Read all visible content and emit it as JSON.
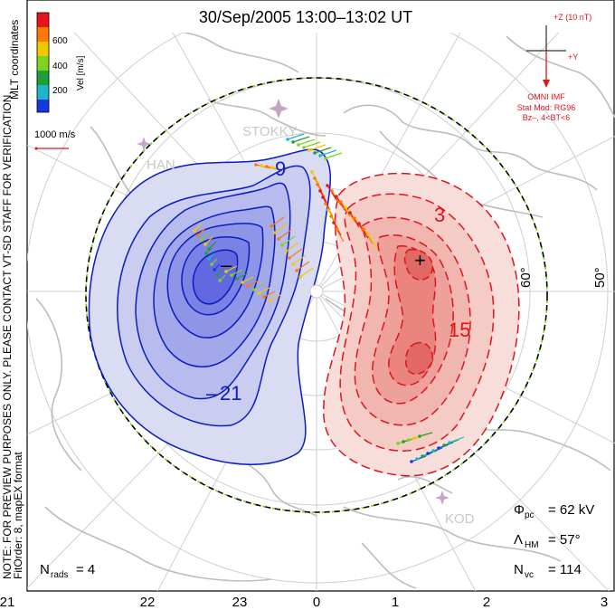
{
  "title": "30/Sep/2005 13:00–13:02 UT",
  "coordinates_label": "MLT coordinates",
  "colorbar": {
    "label": "Vel [m/s]",
    "ticks": [
      "600",
      "400",
      "200"
    ],
    "colors": [
      "#e8141c",
      "#ff7a00",
      "#f2c900",
      "#7ed321",
      "#1f9e3a",
      "#1fb5c9",
      "#1638e0"
    ]
  },
  "reference_vector": "1000 m/s",
  "imf": {
    "z_label": "+Z (10 nT)",
    "y_label": "+Y",
    "source": "OMNI IMF",
    "model": "Stat Mod: RG96",
    "condition": "Bz–, 4<BT<6"
  },
  "notes": {
    "line1": "NOTE: FOR PREVIEW PURPOSES ONLY. PLEASE CONTACT VT-SD STAFF FOR VERIFICATION.",
    "line2": "FitOrder: 8, mapEX format"
  },
  "stations": {
    "stokkseyri": "STOKKY",
    "hankasalmi": "HAN",
    "kodiak": "KOD"
  },
  "latitude_labels": [
    "60°",
    "50°"
  ],
  "contour_labels": {
    "neg_outer": "9",
    "neg_inner": "21",
    "pos_outer": "3",
    "pos_inner": "15",
    "max_marker": "+",
    "min_marker": "–"
  },
  "stats": {
    "phi_label": "Φ",
    "phi_sub": "pc",
    "phi_value": "= 62 kV",
    "lambda_label": "Λ",
    "lambda_sub": "HM",
    "lambda_value": "= 57°",
    "nvc_label": "N",
    "nvc_sub": "vc",
    "nvc_value": "= 114",
    "nrads_label": "N",
    "nrads_sub": "rads",
    "nrads_value": "= 4"
  },
  "mlt_labels": [
    "21",
    "22",
    "23",
    "0",
    "1",
    "2",
    "3"
  ],
  "colors": {
    "negative_line": "#0a1cc4",
    "negative_fill": "#8e95e6",
    "positive_line": "#e0141c",
    "positive_fill": "#f2a6a0",
    "coast": "#bdbdbd",
    "grid": "#c8c8c8",
    "boundary_green": "#7ed321"
  }
}
